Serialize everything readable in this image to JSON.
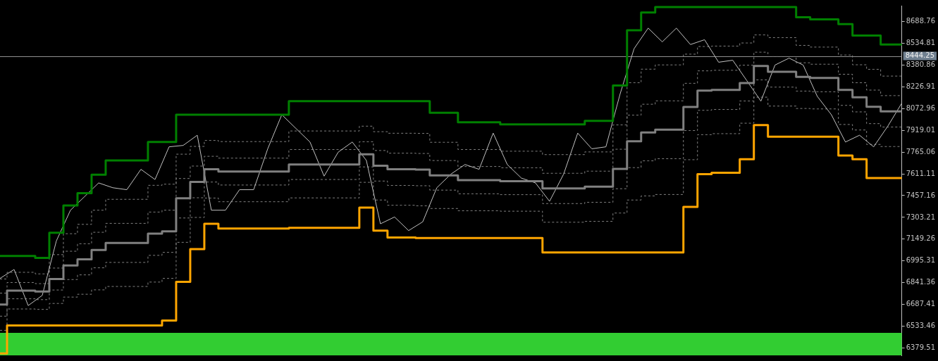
{
  "chart_data": {
    "type": "step",
    "categories": [
      null,
      null,
      null,
      null,
      null,
      null,
      null,
      null,
      null,
      null,
      null,
      null,
      null,
      null,
      null,
      null,
      null,
      null,
      null,
      null,
      null,
      null,
      null,
      null,
      null,
      null,
      null,
      null,
      null,
      null,
      null,
      null,
      null,
      null,
      null,
      null,
      null,
      null,
      null,
      null,
      null,
      null,
      null,
      null,
      null,
      null,
      null,
      null,
      null,
      null,
      null,
      null,
      null,
      null,
      null,
      null,
      null,
      null,
      null,
      null,
      null,
      null,
      null,
      null,
      null
    ],
    "series": [
      {
        "color": "#008000",
        "values": [
          7031,
          7031,
          7031,
          7017,
          7195,
          7388,
          7474,
          7605,
          7706,
          7706,
          7706,
          7836,
          7836,
          8029,
          8029,
          8029,
          8029,
          8029,
          8029,
          8029,
          8029,
          8125,
          8125,
          8125,
          8125,
          8125,
          8125,
          8125,
          8125,
          8125,
          8125,
          8043,
          8043,
          7976,
          7976,
          7976,
          7961,
          7961,
          7961,
          7961,
          7961,
          7961,
          7985,
          7985,
          8236,
          8626,
          8751,
          8790,
          8790,
          8790,
          8790,
          8790,
          8790,
          8790,
          8790,
          8790,
          8790,
          8718,
          8703,
          8703,
          8670,
          8588,
          8588,
          8525,
          8525
        ]
      },
      {
        "color": "#ffa500",
        "values": [
          6342,
          6540,
          6540,
          6540,
          6540,
          6540,
          6540,
          6540,
          6540,
          6540,
          6540,
          6540,
          6574,
          6848,
          7079,
          7258,
          7224,
          7224,
          7224,
          7224,
          7224,
          7229,
          7229,
          7229,
          7229,
          7229,
          7373,
          7210,
          7161,
          7161,
          7157,
          7157,
          7157,
          7157,
          7157,
          7157,
          7157,
          7157,
          7157,
          7055,
          7055,
          7055,
          7055,
          7055,
          7055,
          7055,
          7055,
          7055,
          7055,
          7378,
          7609,
          7619,
          7619,
          7715,
          7956,
          7874,
          7874,
          7874,
          7874,
          7874,
          7740,
          7715,
          7581,
          7581,
          7581
        ]
      },
      {
        "color": "#808080",
        "values": [
          6687,
          6786,
          6786,
          6779,
          6868,
          6964,
          7007,
          7073,
          7123,
          7123,
          7123,
          7188,
          7205,
          7439,
          7554,
          7644,
          7627,
          7627,
          7627,
          7627,
          7627,
          7677,
          7677,
          7677,
          7677,
          7677,
          7749,
          7668,
          7643,
          7643,
          7641,
          7600,
          7600,
          7567,
          7567,
          7567,
          7559,
          7559,
          7559,
          7508,
          7508,
          7508,
          7520,
          7520,
          7646,
          7841,
          7903,
          7923,
          7923,
          8084,
          8200,
          8205,
          8205,
          8253,
          8373,
          8332,
          8332,
          8296,
          8289,
          8289,
          8205,
          8152,
          8085,
          8053,
          8053
        ]
      },
      {
        "type": "line",
        "color": "#c0c0c0",
        "values": [
          6872,
          6935,
          6680,
          6752,
          7137,
          7354,
          7450,
          7547,
          7513,
          7499,
          7643,
          7571,
          7802,
          7812,
          7884,
          7354,
          7354,
          7499,
          7499,
          7788,
          8029,
          7932,
          7836,
          7595,
          7764,
          7836,
          7706,
          7258,
          7306,
          7210,
          7272,
          7513,
          7609,
          7677,
          7643,
          7899,
          7677,
          7581,
          7547,
          7417,
          7609,
          7899,
          7788,
          7802,
          8173,
          8496,
          8641,
          8544,
          8641,
          8525,
          8559,
          8400,
          8414,
          8270,
          8125,
          8380,
          8429,
          8380,
          8159,
          8029,
          7836,
          7884,
          7802,
          7947,
          8111
        ]
      },
      {
        "color": "#808080",
        "line_style": "dashed",
        "values": [
          6868,
          6915,
          6915,
          6904,
          7040,
          7188,
          7254,
          7354,
          7431,
          7431,
          7431,
          7530,
          7538,
          7750,
          7805,
          7847,
          7839,
          7839,
          7839,
          7839,
          7839,
          7914,
          7914,
          7914,
          7914,
          7914,
          7948,
          7909,
          7898,
          7898,
          7897,
          7834,
          7834,
          7783,
          7783,
          7783,
          7771,
          7771,
          7771,
          7747,
          7747,
          7747,
          7766,
          7766,
          7957,
          8255,
          8351,
          8381,
          8381,
          8457,
          8511,
          8514,
          8514,
          8536,
          8593,
          8574,
          8574,
          8519,
          8507,
          8507,
          8451,
          8382,
          8350,
          8302,
          8302
        ]
      },
      {
        "color": "#808080",
        "line_style": "dashed",
        "values": [
          6768,
          6843,
          6843,
          6835,
          6945,
          7064,
          7117,
          7198,
          7261,
          7261,
          7261,
          7341,
          7354,
          7578,
          7666,
          7735,
          7722,
          7722,
          7722,
          7722,
          7722,
          7783,
          7783,
          7783,
          7783,
          7783,
          7838,
          7776,
          7757,
          7757,
          7755,
          7705,
          7705,
          7663,
          7663,
          7663,
          7654,
          7654,
          7654,
          7615,
          7615,
          7615,
          7630,
          7630,
          7785,
          8026,
          8103,
          8127,
          8127,
          8251,
          8339,
          8343,
          8343,
          8379,
          8471,
          8440,
          8440,
          8396,
          8386,
          8386,
          8315,
          8255,
          8203,
          8164,
          8164
        ]
      },
      {
        "color": "#808080",
        "line_style": "dashed",
        "values": [
          6605,
          6728,
          6728,
          6722,
          6790,
          6864,
          6897,
          6947,
          6985,
          6985,
          6985,
          7035,
          7056,
          7299,
          7442,
          7553,
          7532,
          7532,
          7532,
          7532,
          7532,
          7571,
          7571,
          7571,
          7571,
          7571,
          7660,
          7560,
          7529,
          7529,
          7527,
          7496,
          7496,
          7470,
          7470,
          7470,
          7464,
          7464,
          7464,
          7401,
          7401,
          7401,
          7410,
          7410,
          7506,
          7655,
          7703,
          7718,
          7718,
          7917,
          8060,
          8066,
          8066,
          8126,
          8275,
          8224,
          8224,
          8196,
          8191,
          8191,
          8095,
          8049,
          7966,
          7942,
          7942
        ]
      },
      {
        "color": "#808080",
        "line_style": "dashed",
        "values": [
          6505,
          6656,
          6656,
          6653,
          6695,
          6740,
          6760,
          6791,
          6815,
          6815,
          6815,
          6846,
          6872,
          7127,
          7303,
          7440,
          7414,
          7414,
          7414,
          7414,
          7414,
          7441,
          7441,
          7441,
          7441,
          7441,
          7551,
          7426,
          7389,
          7389,
          7385,
          7366,
          7366,
          7350,
          7350,
          7350,
          7347,
          7347,
          7347,
          7269,
          7269,
          7269,
          7275,
          7275,
          7334,
          7426,
          7455,
          7465,
          7465,
          7711,
          7888,
          7895,
          7895,
          7969,
          8153,
          8090,
          8090,
          8073,
          8070,
          8070,
          7960,
          7921,
          7819,
          7804,
          7804
        ]
      }
    ],
    "ylim": [
      6328,
      8800
    ],
    "yticks": [
      6379.51,
      6533.46,
      6687.41,
      6841.36,
      6995.31,
      7149.26,
      7303.21,
      7457.16,
      7611.11,
      7765.06,
      7919.01,
      8072.96,
      8226.91,
      8380.86,
      8534.81,
      8688.76
    ],
    "ref_lines": [
      {
        "axis": "y",
        "value": 8444.25,
        "label": "8444.25",
        "color": "#909090"
      }
    ],
    "bands": [
      {
        "axis": "y",
        "from": 6328,
        "to": 6487,
        "color": "#32cd32"
      }
    ],
    "tick_labels": "y",
    "legend": false,
    "grid": false,
    "marker": "none"
  }
}
